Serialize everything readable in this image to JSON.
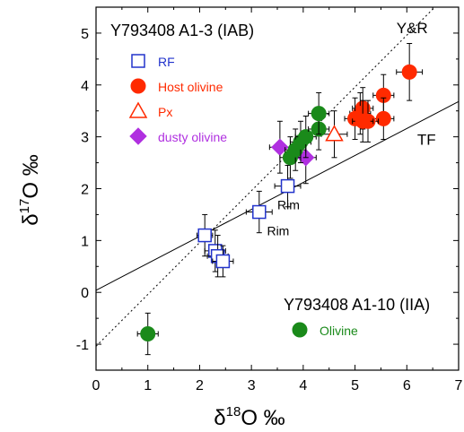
{
  "chart_data": {
    "type": "scatter",
    "xlabel_base": "δ",
    "xlabel_sup": "18",
    "xlabel_rest": "O ‰",
    "ylabel_base": "δ",
    "ylabel_sup": "17",
    "ylabel_rest": "O ‰",
    "xlim": [
      0,
      7
    ],
    "ylim": [
      -1.5,
      5.5
    ],
    "xticks": [
      "0",
      "1",
      "2",
      "3",
      "4",
      "5",
      "6",
      "7"
    ],
    "yticks": [
      "-1",
      "0",
      "1",
      "2",
      "3",
      "4",
      "5"
    ],
    "sample_label_top": "Y793408 A1-3 (IAB)",
    "sample_label_bottom": "Y793408 A1-10 (IIA)",
    "lines": [
      {
        "name": "TF",
        "style": "solid",
        "slope": 0.52,
        "intercept": 0.04
      },
      {
        "name": "Y&R",
        "style": "dotted",
        "slope": 1.0,
        "intercept": -1.04
      }
    ],
    "series": [
      {
        "name": "RF",
        "marker": "open-square",
        "color": "#2233cc",
        "points": [
          {
            "x": 2.1,
            "y": 1.1,
            "xerr": 0.15,
            "yerr": 0.4
          },
          {
            "x": 2.3,
            "y": 0.8,
            "xerr": 0.2,
            "yerr": 0.4
          },
          {
            "x": 2.35,
            "y": 0.7,
            "xerr": 0.2,
            "yerr": 0.4
          },
          {
            "x": 2.45,
            "y": 0.6,
            "xerr": 0.2,
            "yerr": 0.3
          },
          {
            "x": 3.15,
            "y": 1.55,
            "xerr": 0.25,
            "yerr": 0.4
          },
          {
            "x": 3.7,
            "y": 2.05,
            "xerr": 0.25,
            "yerr": 0.4
          }
        ]
      },
      {
        "name": "Host olivine",
        "marker": "filled-circle",
        "color": "#ff2a00",
        "points": [
          {
            "x": 6.05,
            "y": 4.25,
            "xerr": 0.25,
            "yerr": 0.55
          },
          {
            "x": 5.55,
            "y": 3.8,
            "xerr": 0.2,
            "yerr": 0.4
          },
          {
            "x": 5.15,
            "y": 3.55,
            "xerr": 0.2,
            "yerr": 0.4
          },
          {
            "x": 5.1,
            "y": 3.45,
            "xerr": 0.2,
            "yerr": 0.4
          },
          {
            "x": 5.0,
            "y": 3.35,
            "xerr": 0.2,
            "yerr": 0.4
          },
          {
            "x": 5.55,
            "y": 3.35,
            "xerr": 0.2,
            "yerr": 0.4
          },
          {
            "x": 5.25,
            "y": 3.3,
            "xerr": 0.2,
            "yerr": 0.4
          },
          {
            "x": 5.15,
            "y": 3.3,
            "xerr": 0.2,
            "yerr": 0.4
          }
        ]
      },
      {
        "name": "Px",
        "marker": "open-triangle",
        "color": "#ff2a00",
        "points": [
          {
            "x": 4.6,
            "y": 3.05,
            "xerr": 0.25,
            "yerr": 0.45
          }
        ]
      },
      {
        "name": "dusty olivine",
        "marker": "filled-diamond",
        "color": "#b030e0",
        "points": [
          {
            "x": 3.55,
            "y": 2.8,
            "xerr": 0.2,
            "yerr": 0.5
          },
          {
            "x": 4.05,
            "y": 2.6,
            "xerr": 0.2,
            "yerr": 0.5
          }
        ]
      },
      {
        "name": "Olivine",
        "marker": "filled-circle",
        "color": "#1a8a1a",
        "points": [
          {
            "x": 1.0,
            "y": -0.8,
            "xerr": 0.2,
            "yerr": 0.4
          },
          {
            "x": 3.75,
            "y": 2.6,
            "xerr": 0.2,
            "yerr": 0.4
          },
          {
            "x": 3.85,
            "y": 2.75,
            "xerr": 0.2,
            "yerr": 0.4
          },
          {
            "x": 3.95,
            "y": 2.9,
            "xerr": 0.2,
            "yerr": 0.4
          },
          {
            "x": 4.05,
            "y": 3.0,
            "xerr": 0.2,
            "yerr": 0.4
          },
          {
            "x": 4.3,
            "y": 3.15,
            "xerr": 0.2,
            "yerr": 0.4
          },
          {
            "x": 4.3,
            "y": 3.45,
            "xerr": 0.2,
            "yerr": 0.4
          }
        ]
      }
    ],
    "annotations": [
      {
        "text": "Rim",
        "x": 3.5,
        "y": 1.6
      },
      {
        "text": "Rim",
        "x": 3.3,
        "y": 1.1
      },
      {
        "text": "TF",
        "x": 6.2,
        "y": 2.85
      },
      {
        "text": "Y&R",
        "x": 5.8,
        "y": 5.0
      }
    ],
    "legend_top": [
      "RF",
      "Host olivine",
      "Px",
      "dusty olivine"
    ],
    "legend_bottom": [
      "Olivine"
    ]
  }
}
